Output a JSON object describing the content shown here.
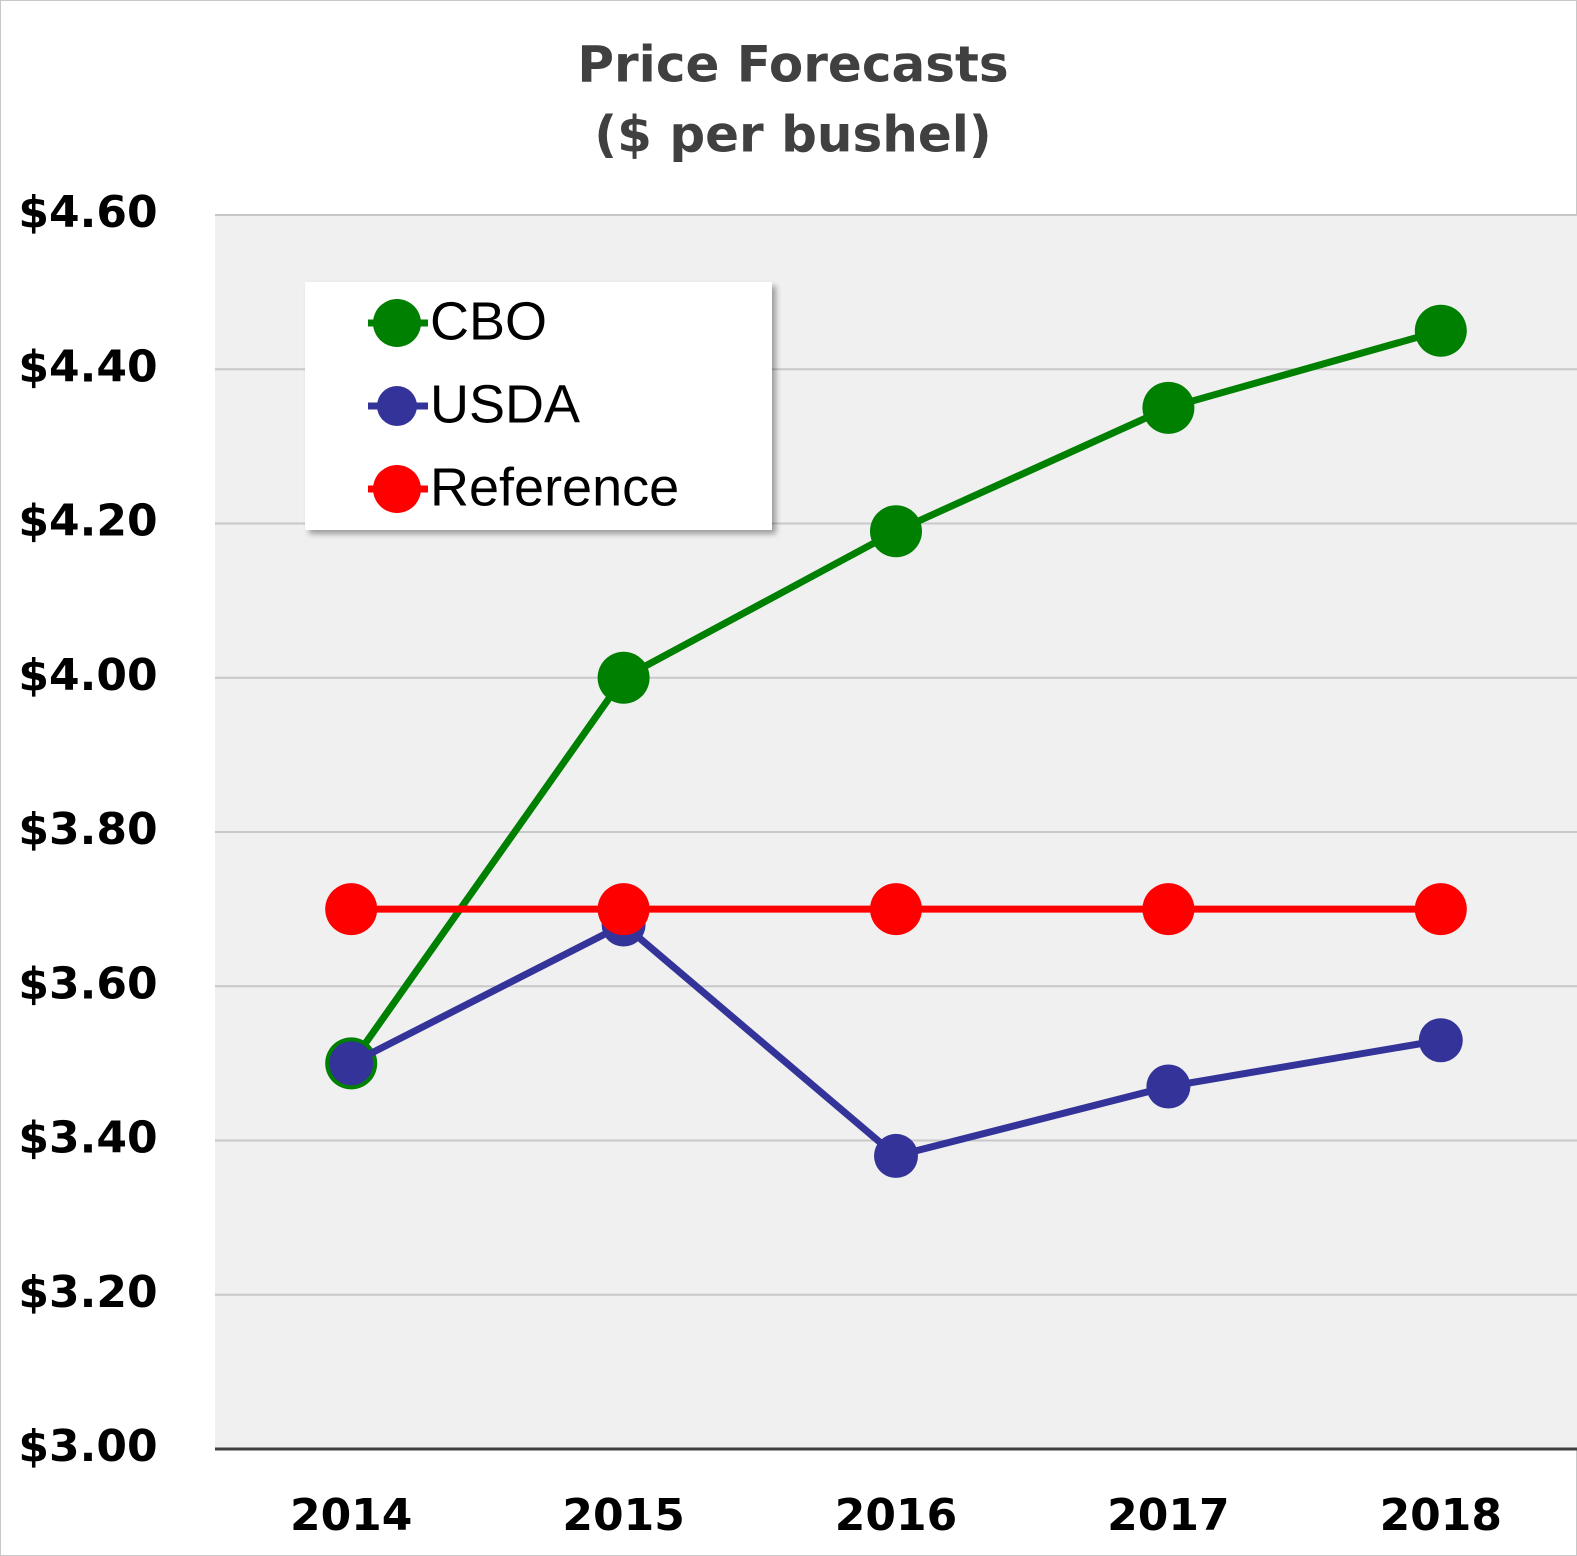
{
  "chart_data": {
    "type": "line",
    "title": "Price Forecasts",
    "subtitle": "($ per bushel)",
    "categories": [
      "2014",
      "2015",
      "2016",
      "2017",
      "2018"
    ],
    "series": [
      {
        "name": "CBO",
        "color": "#008000",
        "values": [
          3.5,
          4.0,
          4.19,
          4.35,
          4.45
        ]
      },
      {
        "name": "USDA",
        "color": "#333399",
        "values": [
          3.5,
          3.68,
          3.38,
          3.47,
          3.53
        ]
      },
      {
        "name": "Reference",
        "color": "#ff0000",
        "values": [
          3.7,
          3.7,
          3.7,
          3.7,
          3.7
        ]
      }
    ],
    "ylim": [
      3.0,
      4.6
    ],
    "yticks": [
      {
        "value": 3.0,
        "label": "$3.00"
      },
      {
        "value": 3.2,
        "label": "$3.20"
      },
      {
        "value": 3.4,
        "label": "$3.40"
      },
      {
        "value": 3.6,
        "label": "$3.60"
      },
      {
        "value": 3.8,
        "label": "$3.80"
      },
      {
        "value": 4.0,
        "label": "$4.00"
      },
      {
        "value": 4.2,
        "label": "$4.20"
      },
      {
        "value": 4.4,
        "label": "$4.40"
      },
      {
        "value": 4.6,
        "label": "$4.60"
      }
    ],
    "grid": true,
    "legend": "upper left"
  }
}
